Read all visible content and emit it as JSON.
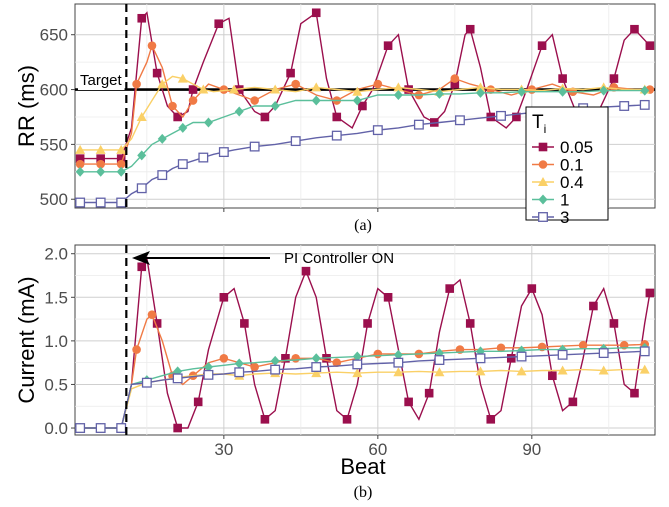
{
  "chart_data": [
    {
      "type": "line",
      "panel_label": "(a)",
      "xlabel": "",
      "ylabel": "RR (ms)",
      "xlim": [
        1,
        114
      ],
      "ylim": [
        492,
        678
      ],
      "y_ticks": [
        "500",
        "550",
        "600",
        "650"
      ],
      "grid": true,
      "reference_line": {
        "label": "Target",
        "y": 600
      },
      "controller_on_beat": 11,
      "legend": {
        "title": "T",
        "title_subscript": "i",
        "placement": "right",
        "entries": [
          "0.05",
          "0.1",
          "0.4",
          "1",
          "3"
        ]
      },
      "series": [
        {
          "name": "0.05",
          "color": "#9b0f4d",
          "marker": "square-filled",
          "x": [
            2,
            4,
            6,
            8,
            10,
            12,
            14,
            15,
            17,
            19,
            21,
            23,
            24,
            26,
            29,
            31,
            33,
            36,
            38,
            40,
            43,
            45,
            48,
            50,
            52,
            55,
            57,
            59,
            62,
            64,
            66,
            69,
            71,
            73,
            75,
            77,
            78,
            80,
            82,
            85,
            87,
            89,
            92,
            94,
            96,
            99,
            101,
            103,
            106,
            108,
            110,
            113
          ],
          "y": [
            537,
            537,
            537,
            537,
            537,
            565,
            665,
            670,
            615,
            585,
            575,
            580,
            600,
            625,
            660,
            665,
            600,
            580,
            575,
            585,
            615,
            660,
            670,
            610,
            575,
            565,
            585,
            600,
            640,
            650,
            600,
            575,
            570,
            580,
            605,
            650,
            655,
            620,
            575,
            565,
            575,
            600,
            640,
            650,
            610,
            575,
            565,
            580,
            610,
            645,
            655,
            640
          ]
        },
        {
          "name": "0.1",
          "color": "#f07a45",
          "marker": "circle-filled",
          "x": [
            2,
            4,
            6,
            8,
            10,
            12,
            13,
            15,
            16,
            18,
            20,
            22,
            24,
            27,
            30,
            33,
            36,
            40,
            44,
            48,
            52,
            56,
            60,
            64,
            68,
            72,
            75,
            78,
            82,
            86,
            90,
            94,
            98,
            102,
            106,
            110,
            113
          ],
          "y": [
            532,
            532,
            532,
            532,
            532,
            560,
            605,
            625,
            640,
            620,
            585,
            575,
            590,
            605,
            600,
            595,
            590,
            600,
            605,
            595,
            590,
            600,
            605,
            600,
            595,
            600,
            610,
            605,
            600,
            595,
            600,
            605,
            598,
            595,
            602,
            600,
            600
          ]
        },
        {
          "name": "0.4",
          "color": "#fad067",
          "marker": "triangle-filled",
          "x": [
            2,
            4,
            6,
            8,
            10,
            12,
            14,
            16,
            18,
            20,
            22,
            24,
            26,
            28,
            32,
            36,
            40,
            44,
            48,
            52,
            56,
            60,
            64,
            68,
            72,
            76,
            80,
            84,
            88,
            92,
            96,
            100,
            104,
            108,
            112
          ],
          "y": [
            545,
            545,
            545,
            545,
            545,
            555,
            575,
            590,
            605,
            612,
            610,
            605,
            600,
            598,
            600,
            602,
            600,
            598,
            602,
            600,
            598,
            600,
            602,
            600,
            598,
            600,
            602,
            600,
            600,
            599,
            601,
            600,
            602,
            600,
            600
          ]
        },
        {
          "name": "1",
          "color": "#5bbf9b",
          "marker": "diamond-filled",
          "x": [
            2,
            4,
            6,
            8,
            10,
            12,
            14,
            16,
            18,
            20,
            22,
            24,
            27,
            30,
            33,
            36,
            40,
            44,
            48,
            52,
            56,
            60,
            64,
            68,
            72,
            76,
            80,
            84,
            88,
            92,
            96,
            100,
            104,
            108,
            112
          ],
          "y": [
            525,
            525,
            525,
            525,
            525,
            530,
            540,
            550,
            555,
            560,
            565,
            570,
            570,
            575,
            580,
            585,
            585,
            590,
            590,
            590,
            590,
            595,
            595,
            595,
            596,
            596,
            597,
            597,
            598,
            598,
            598,
            598,
            599,
            599,
            599
          ]
        },
        {
          "name": "3",
          "color": "#6262a8",
          "marker": "square-open",
          "x": [
            2,
            4,
            6,
            8,
            10,
            12,
            14,
            16,
            18,
            20,
            22,
            24,
            26,
            28,
            30,
            32,
            36,
            40,
            44,
            48,
            52,
            56,
            60,
            64,
            68,
            72,
            76,
            80,
            84,
            88,
            92,
            96,
            100,
            104,
            108,
            112
          ],
          "y": [
            497,
            497,
            497,
            497,
            497,
            505,
            510,
            518,
            522,
            528,
            532,
            535,
            538,
            541,
            543,
            545,
            548,
            550,
            553,
            556,
            558,
            560,
            563,
            565,
            568,
            570,
            572,
            574,
            576,
            578,
            580,
            581,
            583,
            584,
            585,
            586
          ]
        }
      ]
    },
    {
      "type": "line",
      "panel_label": "(b)",
      "xlabel": "Beat",
      "ylabel": "Current (mA)",
      "xlim": [
        1,
        114
      ],
      "ylim": [
        -0.08,
        2.1
      ],
      "x_ticks": [
        30,
        60,
        90
      ],
      "y_ticks": [
        "0.0",
        "0.5",
        "1.0",
        "1.5",
        "2.0"
      ],
      "grid": true,
      "annotation": {
        "text": "PI Controller ON"
      },
      "controller_on_beat": 11,
      "series": [
        {
          "name": "0.05",
          "color": "#9b0f4d",
          "marker": "square-filled",
          "x": [
            2,
            4,
            6,
            8,
            10,
            12,
            14,
            15,
            17,
            19,
            21,
            23,
            25,
            27,
            30,
            32,
            34,
            36,
            38,
            40,
            42,
            44,
            46,
            48,
            50,
            52,
            54,
            56,
            58,
            60,
            62,
            64,
            66,
            68,
            70,
            72,
            74,
            76,
            78,
            80,
            82,
            84,
            86,
            88,
            90,
            92,
            94,
            96,
            98,
            100,
            102,
            104,
            106,
            108,
            110,
            112,
            113
          ],
          "y": [
            0,
            0,
            0,
            0,
            0,
            0.5,
            1.85,
            1.95,
            1.2,
            0.4,
            0,
            0,
            0.3,
            0.9,
            1.5,
            1.6,
            1.2,
            0.5,
            0.1,
            0.2,
            0.8,
            1.5,
            1.8,
            1.5,
            0.8,
            0.2,
            0.1,
            0.5,
            1.2,
            1.6,
            1.5,
            0.9,
            0.3,
            0.1,
            0.4,
            1.1,
            1.6,
            1.7,
            1.2,
            0.5,
            0.1,
            0.2,
            0.8,
            1.4,
            1.6,
            1.3,
            0.6,
            0.2,
            0.3,
            0.8,
            1.4,
            1.6,
            1.2,
            0.5,
            0.4,
            1.2,
            1.55
          ]
        },
        {
          "name": "0.1",
          "color": "#f07a45",
          "marker": "circle-filled",
          "x": [
            2,
            4,
            6,
            8,
            10,
            12,
            13,
            15,
            16,
            18,
            20,
            22,
            24,
            27,
            30,
            33,
            36,
            40,
            44,
            48,
            52,
            56,
            60,
            64,
            68,
            72,
            76,
            80,
            84,
            88,
            92,
            96,
            100,
            104,
            108,
            112
          ],
          "y": [
            0,
            0,
            0,
            0,
            0,
            0.5,
            0.9,
            1.25,
            1.3,
            1.0,
            0.6,
            0.5,
            0.6,
            0.75,
            0.8,
            0.75,
            0.7,
            0.75,
            0.8,
            0.8,
            0.75,
            0.8,
            0.85,
            0.85,
            0.85,
            0.88,
            0.9,
            0.9,
            0.92,
            0.92,
            0.93,
            0.94,
            0.95,
            0.95,
            0.95,
            0.96
          ]
        },
        {
          "name": "0.4",
          "color": "#fad067",
          "marker": "triangle-filled",
          "x": [
            2,
            4,
            6,
            8,
            10,
            12,
            15,
            18,
            21,
            24,
            27,
            30,
            33,
            36,
            40,
            44,
            48,
            52,
            56,
            60,
            64,
            68,
            72,
            76,
            80,
            84,
            88,
            92,
            96,
            100,
            104,
            108,
            112
          ],
          "y": [
            0,
            0,
            0,
            0,
            0,
            0.45,
            0.52,
            0.55,
            0.58,
            0.6,
            0.62,
            0.62,
            0.6,
            0.62,
            0.63,
            0.62,
            0.63,
            0.64,
            0.63,
            0.64,
            0.64,
            0.65,
            0.64,
            0.65,
            0.65,
            0.66,
            0.65,
            0.66,
            0.66,
            0.67,
            0.66,
            0.67,
            0.67
          ]
        },
        {
          "name": "1",
          "color": "#5bbf9b",
          "marker": "diamond-filled",
          "x": [
            2,
            4,
            6,
            8,
            10,
            12,
            15,
            18,
            21,
            24,
            27,
            30,
            33,
            36,
            40,
            44,
            48,
            52,
            56,
            60,
            64,
            68,
            72,
            76,
            80,
            84,
            88,
            92,
            96,
            100,
            104,
            108,
            112
          ],
          "y": [
            0,
            0,
            0,
            0,
            0,
            0.5,
            0.55,
            0.6,
            0.65,
            0.68,
            0.7,
            0.72,
            0.74,
            0.75,
            0.77,
            0.78,
            0.8,
            0.81,
            0.82,
            0.83,
            0.84,
            0.85,
            0.86,
            0.87,
            0.88,
            0.88,
            0.89,
            0.9,
            0.9,
            0.91,
            0.91,
            0.92,
            0.92
          ]
        },
        {
          "name": "3",
          "color": "#6262a8",
          "marker": "square-open",
          "x": [
            2,
            4,
            6,
            8,
            10,
            12,
            15,
            18,
            21,
            24,
            27,
            30,
            33,
            36,
            40,
            44,
            48,
            52,
            56,
            60,
            64,
            68,
            72,
            76,
            80,
            84,
            88,
            92,
            96,
            100,
            104,
            108,
            112
          ],
          "y": [
            0,
            0,
            0,
            0,
            0,
            0.5,
            0.52,
            0.55,
            0.57,
            0.59,
            0.61,
            0.62,
            0.64,
            0.65,
            0.67,
            0.68,
            0.7,
            0.71,
            0.73,
            0.74,
            0.75,
            0.77,
            0.78,
            0.79,
            0.8,
            0.81,
            0.82,
            0.83,
            0.84,
            0.85,
            0.86,
            0.87,
            0.88
          ]
        }
      ]
    }
  ]
}
